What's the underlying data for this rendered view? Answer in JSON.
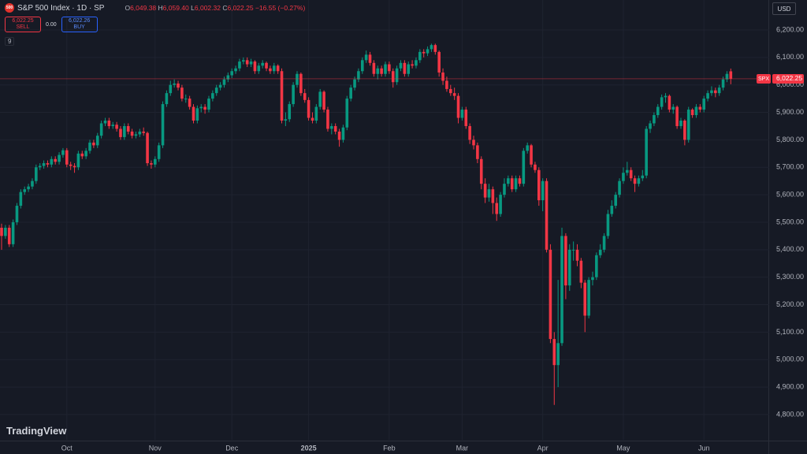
{
  "header": {
    "logo_text": "500",
    "symbol": "S&P 500 Index · 1D · SP",
    "ohlc": [
      {
        "key": "O",
        "value": "6,049.38"
      },
      {
        "key": "H",
        "value": "6,059.40"
      },
      {
        "key": "L",
        "value": "6,002.32"
      },
      {
        "key": "C",
        "value": "6,022.25"
      }
    ],
    "change": "−16.55 (−0.27%)",
    "sell_price": "6,022.25",
    "sell": "SELL",
    "spread": "0.00",
    "buy_price": "6,022.26",
    "buy": "BUY",
    "indicators": "9",
    "currency": "USD",
    "brand": "TradingView"
  },
  "chart_data": {
    "type": "candlestick",
    "up_color": "#089981",
    "down_color": "#f23645",
    "grid": true,
    "last_price": {
      "symbol": "SPX",
      "label": "6,022.25",
      "color": "#f23645"
    },
    "ylim": [
      4708,
      6309
    ],
    "yticks": [
      {
        "value": 4800,
        "label": "4,800.00"
      },
      {
        "value": 4900,
        "label": "4,900.00"
      },
      {
        "value": 5000,
        "label": "5,000.00"
      },
      {
        "value": 5100,
        "label": "5,100.00"
      },
      {
        "value": 5200,
        "label": "5,200.00"
      },
      {
        "value": 5300,
        "label": "5,300.00"
      },
      {
        "value": 5400,
        "label": "5,400.00"
      },
      {
        "value": 5500,
        "label": "5,500.00"
      },
      {
        "value": 5600,
        "label": "5,600.00"
      },
      {
        "value": 5700,
        "label": "5,700.00"
      },
      {
        "value": 5800,
        "label": "5,800.00"
      },
      {
        "value": 5900,
        "label": "5,900.00"
      },
      {
        "value": 6000,
        "label": "6,000.00"
      },
      {
        "value": 6100,
        "label": "6,100.00"
      },
      {
        "value": 6200,
        "label": "6,200.00"
      }
    ],
    "categories": [
      null,
      null,
      null,
      null,
      null,
      null,
      null,
      null,
      null,
      null,
      null,
      null,
      null,
      null,
      null,
      null,
      null,
      "Oct",
      null,
      null,
      null,
      null,
      null,
      null,
      null,
      null,
      null,
      null,
      null,
      null,
      null,
      null,
      null,
      null,
      null,
      null,
      null,
      null,
      null,
      null,
      "Nov",
      null,
      null,
      null,
      null,
      null,
      null,
      null,
      null,
      null,
      null,
      null,
      null,
      null,
      null,
      null,
      null,
      null,
      null,
      null,
      "Dec",
      null,
      null,
      null,
      null,
      null,
      null,
      null,
      null,
      null,
      null,
      null,
      null,
      null,
      null,
      null,
      null,
      null,
      null,
      null,
      "2025",
      null,
      null,
      null,
      null,
      null,
      null,
      null,
      null,
      null,
      null,
      null,
      null,
      null,
      null,
      null,
      null,
      null,
      null,
      null,
      null,
      "Feb",
      null,
      null,
      null,
      null,
      null,
      null,
      null,
      null,
      null,
      null,
      null,
      null,
      null,
      null,
      null,
      null,
      null,
      null,
      "Mar",
      null,
      null,
      null,
      null,
      null,
      null,
      null,
      null,
      null,
      null,
      null,
      null,
      null,
      null,
      null,
      null,
      null,
      null,
      null,
      null,
      "Apr",
      null,
      null,
      null,
      null,
      null,
      null,
      null,
      null,
      null,
      null,
      null,
      null,
      null,
      null,
      null,
      null,
      null,
      null,
      null,
      null,
      "May",
      null,
      null,
      null,
      null,
      null,
      null,
      null,
      null,
      null,
      null,
      null,
      null,
      null,
      null,
      null,
      null,
      null,
      null,
      null,
      null,
      "Jun",
      null,
      null,
      null,
      null,
      null,
      null,
      null
    ],
    "ohlc": [
      [
        5480,
        5495,
        5400,
        5450
      ],
      [
        5450,
        5490,
        5440,
        5480
      ],
      [
        5480,
        5490,
        5410,
        5420
      ],
      [
        5420,
        5510,
        5410,
        5500
      ],
      [
        5500,
        5570,
        5490,
        5560
      ],
      [
        5560,
        5620,
        5550,
        5610
      ],
      [
        5610,
        5630,
        5600,
        5620
      ],
      [
        5620,
        5640,
        5610,
        5630
      ],
      [
        5630,
        5660,
        5620,
        5650
      ],
      [
        5650,
        5710,
        5640,
        5700
      ],
      [
        5700,
        5715,
        5690,
        5705
      ],
      [
        5705,
        5725,
        5695,
        5715
      ],
      [
        5715,
        5725,
        5700,
        5710
      ],
      [
        5710,
        5740,
        5700,
        5730
      ],
      [
        5730,
        5740,
        5710,
        5720
      ],
      [
        5720,
        5755,
        5710,
        5745
      ],
      [
        5745,
        5770,
        5735,
        5762
      ],
      [
        5762,
        5770,
        5700,
        5710
      ],
      [
        5710,
        5720,
        5690,
        5705
      ],
      [
        5705,
        5715,
        5680,
        5700
      ],
      [
        5700,
        5760,
        5690,
        5750
      ],
      [
        5750,
        5760,
        5730,
        5740
      ],
      [
        5740,
        5770,
        5730,
        5760
      ],
      [
        5760,
        5800,
        5750,
        5790
      ],
      [
        5790,
        5800,
        5770,
        5780
      ],
      [
        5780,
        5825,
        5770,
        5815
      ],
      [
        5815,
        5870,
        5805,
        5860
      ],
      [
        5860,
        5880,
        5850,
        5870
      ],
      [
        5870,
        5880,
        5840,
        5850
      ],
      [
        5850,
        5865,
        5840,
        5855
      ],
      [
        5855,
        5865,
        5830,
        5840
      ],
      [
        5840,
        5850,
        5800,
        5810
      ],
      [
        5810,
        5860,
        5800,
        5850
      ],
      [
        5850,
        5860,
        5820,
        5830
      ],
      [
        5830,
        5840,
        5805,
        5815
      ],
      [
        5815,
        5830,
        5805,
        5820
      ],
      [
        5820,
        5840,
        5810,
        5830
      ],
      [
        5830,
        5845,
        5815,
        5825
      ],
      [
        5825,
        5830,
        5705,
        5715
      ],
      [
        5715,
        5725,
        5695,
        5710
      ],
      [
        5710,
        5740,
        5700,
        5730
      ],
      [
        5730,
        5790,
        5720,
        5780
      ],
      [
        5780,
        5940,
        5770,
        5930
      ],
      [
        5930,
        5980,
        5920,
        5970
      ],
      [
        5970,
        6015,
        5960,
        6000
      ],
      [
        6000,
        6020,
        5990,
        6005
      ],
      [
        6005,
        6015,
        5980,
        5990
      ],
      [
        5990,
        6000,
        5940,
        5950
      ],
      [
        5950,
        5965,
        5935,
        5950
      ],
      [
        5950,
        5960,
        5910,
        5920
      ],
      [
        5920,
        5930,
        5860,
        5870
      ],
      [
        5870,
        5925,
        5860,
        5915
      ],
      [
        5915,
        5930,
        5900,
        5920
      ],
      [
        5920,
        5930,
        5895,
        5910
      ],
      [
        5910,
        5960,
        5900,
        5950
      ],
      [
        5950,
        5980,
        5940,
        5970
      ],
      [
        5970,
        6000,
        5960,
        5990
      ],
      [
        5990,
        6010,
        5980,
        6000
      ],
      [
        6000,
        6030,
        5990,
        6020
      ],
      [
        6020,
        6045,
        6010,
        6035
      ],
      [
        6035,
        6060,
        6025,
        6050
      ],
      [
        6050,
        6070,
        6040,
        6060
      ],
      [
        6060,
        6095,
        6050,
        6085
      ],
      [
        6085,
        6100,
        6075,
        6090
      ],
      [
        6090,
        6100,
        6065,
        6075
      ],
      [
        6075,
        6095,
        6065,
        6085
      ],
      [
        6085,
        6090,
        6040,
        6050
      ],
      [
        6050,
        6080,
        6040,
        6070
      ],
      [
        6070,
        6090,
        6060,
        6080
      ],
      [
        6080,
        6085,
        6050,
        6060
      ],
      [
        6060,
        6070,
        6040,
        6050
      ],
      [
        6050,
        6080,
        6040,
        6070
      ],
      [
        6070,
        6075,
        6040,
        6050
      ],
      [
        6050,
        6060,
        5860,
        5870
      ],
      [
        5870,
        5900,
        5850,
        5875
      ],
      [
        5875,
        5940,
        5865,
        5930
      ],
      [
        5930,
        6010,
        5920,
        6000
      ],
      [
        6000,
        6050,
        5990,
        6040
      ],
      [
        6040,
        6045,
        5960,
        5970
      ],
      [
        5970,
        5985,
        5935,
        5945
      ],
      [
        5945,
        5955,
        5870,
        5880
      ],
      [
        5880,
        5900,
        5860,
        5870
      ],
      [
        5870,
        5930,
        5860,
        5920
      ],
      [
        5920,
        5985,
        5910,
        5975
      ],
      [
        5975,
        5980,
        5900,
        5910
      ],
      [
        5910,
        5920,
        5830,
        5840
      ],
      [
        5840,
        5860,
        5820,
        5850
      ],
      [
        5850,
        5860,
        5820,
        5830
      ],
      [
        5830,
        5840,
        5775,
        5800
      ],
      [
        5800,
        5855,
        5790,
        5845
      ],
      [
        5845,
        5960,
        5835,
        5950
      ],
      [
        5950,
        6000,
        5940,
        5990
      ],
      [
        5990,
        6030,
        5980,
        6020
      ],
      [
        6020,
        6060,
        6010,
        6050
      ],
      [
        6050,
        6100,
        6040,
        6090
      ],
      [
        6090,
        6125,
        6080,
        6110
      ],
      [
        6110,
        6120,
        6070,
        6080
      ],
      [
        6080,
        6090,
        6030,
        6040
      ],
      [
        6040,
        6070,
        6020,
        6060
      ],
      [
        6060,
        6070,
        6030,
        6040
      ],
      [
        6040,
        6085,
        6030,
        6075
      ],
      [
        6075,
        6085,
        6040,
        6050
      ],
      [
        6050,
        6060,
        5990,
        6010
      ],
      [
        6010,
        6070,
        6000,
        6060
      ],
      [
        6060,
        6090,
        6050,
        6080
      ],
      [
        6080,
        6090,
        6030,
        6040
      ],
      [
        6040,
        6085,
        6030,
        6075
      ],
      [
        6075,
        6090,
        6060,
        6070
      ],
      [
        6070,
        6100,
        6060,
        6090
      ],
      [
        6090,
        6130,
        6080,
        6120
      ],
      [
        6120,
        6130,
        6100,
        6115
      ],
      [
        6115,
        6140,
        6105,
        6130
      ],
      [
        6130,
        6150,
        6120,
        6145
      ],
      [
        6145,
        6150,
        6110,
        6120
      ],
      [
        6120,
        6125,
        6030,
        6045
      ],
      [
        6045,
        6060,
        6000,
        6015
      ],
      [
        6015,
        6030,
        5975,
        5985
      ],
      [
        5985,
        6000,
        5960,
        5970
      ],
      [
        5970,
        5990,
        5945,
        5960
      ],
      [
        5960,
        5970,
        5860,
        5880
      ],
      [
        5880,
        5920,
        5870,
        5910
      ],
      [
        5910,
        5920,
        5840,
        5850
      ],
      [
        5850,
        5860,
        5785,
        5800
      ],
      [
        5800,
        5815,
        5765,
        5780
      ],
      [
        5780,
        5790,
        5715,
        5730
      ],
      [
        5730,
        5740,
        5620,
        5640
      ],
      [
        5640,
        5660,
        5570,
        5590
      ],
      [
        5590,
        5640,
        5575,
        5620
      ],
      [
        5620,
        5630,
        5530,
        5570
      ],
      [
        5570,
        5590,
        5505,
        5530
      ],
      [
        5530,
        5610,
        5520,
        5600
      ],
      [
        5600,
        5660,
        5590,
        5640
      ],
      [
        5640,
        5670,
        5630,
        5660
      ],
      [
        5660,
        5670,
        5610,
        5620
      ],
      [
        5620,
        5670,
        5610,
        5660
      ],
      [
        5660,
        5670,
        5630,
        5640
      ],
      [
        5640,
        5770,
        5630,
        5760
      ],
      [
        5760,
        5790,
        5750,
        5780
      ],
      [
        5780,
        5785,
        5700,
        5710
      ],
      [
        5710,
        5720,
        5680,
        5690
      ],
      [
        5690,
        5700,
        5560,
        5580
      ],
      [
        5580,
        5660,
        5540,
        5650
      ],
      [
        5650,
        5660,
        5390,
        5400
      ],
      [
        5400,
        5420,
        5060,
        5075
      ],
      [
        5075,
        5100,
        4835,
        4980
      ],
      [
        4980,
        5290,
        4900,
        5060
      ],
      [
        5060,
        5480,
        5050,
        5450
      ],
      [
        5450,
        5460,
        5220,
        5270
      ],
      [
        5270,
        5420,
        5250,
        5400
      ],
      [
        5400,
        5430,
        5360,
        5400
      ],
      [
        5400,
        5420,
        5340,
        5360
      ],
      [
        5360,
        5370,
        5260,
        5280
      ],
      [
        5280,
        5290,
        5100,
        5160
      ],
      [
        5160,
        5300,
        5150,
        5290
      ],
      [
        5290,
        5320,
        5270,
        5300
      ],
      [
        5300,
        5390,
        5290,
        5380
      ],
      [
        5380,
        5420,
        5370,
        5400
      ],
      [
        5400,
        5460,
        5390,
        5450
      ],
      [
        5450,
        5545,
        5440,
        5530
      ],
      [
        5530,
        5580,
        5520,
        5560
      ],
      [
        5560,
        5610,
        5550,
        5600
      ],
      [
        5600,
        5660,
        5590,
        5650
      ],
      [
        5650,
        5700,
        5640,
        5680
      ],
      [
        5680,
        5720,
        5670,
        5690
      ],
      [
        5690,
        5700,
        5650,
        5660
      ],
      [
        5660,
        5670,
        5610,
        5640
      ],
      [
        5640,
        5670,
        5630,
        5660
      ],
      [
        5660,
        5690,
        5650,
        5670
      ],
      [
        5670,
        5850,
        5660,
        5840
      ],
      [
        5840,
        5870,
        5825,
        5860
      ],
      [
        5860,
        5900,
        5850,
        5890
      ],
      [
        5890,
        5930,
        5880,
        5920
      ],
      [
        5920,
        5965,
        5910,
        5955
      ],
      [
        5955,
        5970,
        5935,
        5960
      ],
      [
        5960,
        5965,
        5900,
        5910
      ],
      [
        5910,
        5930,
        5895,
        5920
      ],
      [
        5920,
        5925,
        5840,
        5850
      ],
      [
        5850,
        5880,
        5840,
        5870
      ],
      [
        5870,
        5875,
        5780,
        5800
      ],
      [
        5800,
        5920,
        5790,
        5910
      ],
      [
        5910,
        5915,
        5880,
        5890
      ],
      [
        5890,
        5930,
        5880,
        5920
      ],
      [
        5920,
        5930,
        5900,
        5910
      ],
      [
        5910,
        5960,
        5900,
        5950
      ],
      [
        5950,
        5980,
        5940,
        5970
      ],
      [
        5970,
        5995,
        5960,
        5980
      ],
      [
        5980,
        5990,
        5955,
        5970
      ],
      [
        5970,
        6000,
        5960,
        5990
      ],
      [
        5990,
        6030,
        5980,
        6020
      ],
      [
        6020,
        6050,
        6010,
        6040
      ],
      [
        6049.38,
        6059.4,
        6002.32,
        6022.25
      ]
    ]
  }
}
